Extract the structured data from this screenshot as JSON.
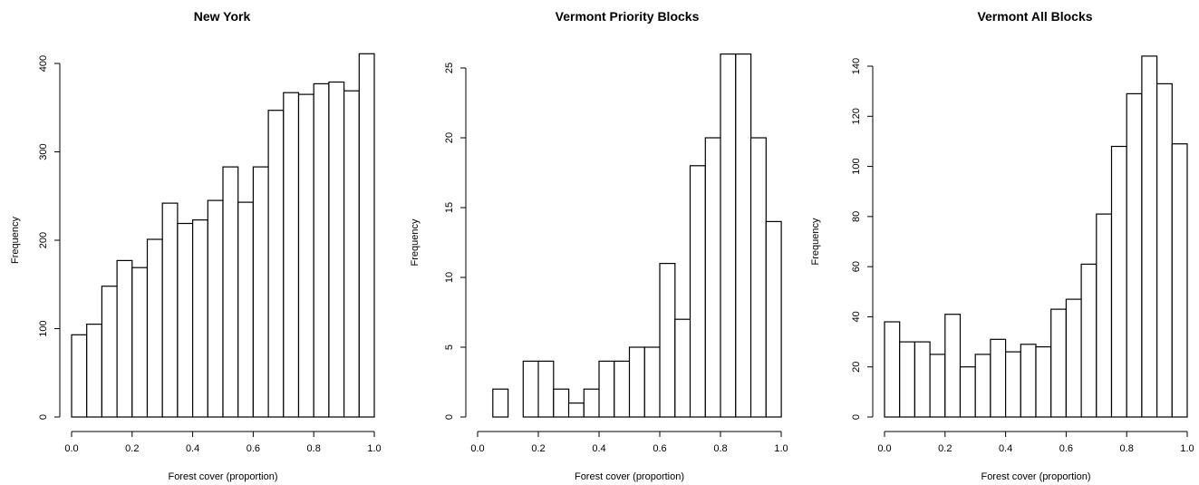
{
  "chart_data": [
    {
      "type": "bar",
      "title": "New York",
      "xlabel": "Forest cover (proportion)",
      "ylabel": "Frequency",
      "xlim": [
        0,
        1
      ],
      "ylim": [
        0,
        400
      ],
      "xticks": [
        "0.0",
        "0.2",
        "0.4",
        "0.6",
        "0.8",
        "1.0"
      ],
      "yticks": [
        "0",
        "100",
        "200",
        "300",
        "400"
      ],
      "bin_edges": [
        0.0,
        0.05,
        0.1,
        0.15,
        0.2,
        0.25,
        0.3,
        0.35,
        0.4,
        0.45,
        0.5,
        0.55,
        0.6,
        0.65,
        0.7,
        0.75,
        0.8,
        0.85,
        0.9,
        0.95,
        1.0
      ],
      "values": [
        93,
        105,
        148,
        177,
        169,
        201,
        242,
        219,
        223,
        245,
        283,
        243,
        283,
        347,
        367,
        365,
        377,
        379,
        369,
        411
      ],
      "grid": false
    },
    {
      "type": "bar",
      "title": "Vermont Priority Blocks",
      "xlabel": "Forest cover (proportion)",
      "ylabel": "Frequency",
      "xlim": [
        0,
        1
      ],
      "ylim": [
        0,
        25
      ],
      "xticks": [
        "0.0",
        "0.2",
        "0.4",
        "0.6",
        "0.8",
        "1.0"
      ],
      "yticks": [
        "0",
        "5",
        "10",
        "15",
        "20",
        "25"
      ],
      "bin_edges": [
        0.05,
        0.1,
        0.15,
        0.2,
        0.25,
        0.3,
        0.35,
        0.4,
        0.45,
        0.5,
        0.55,
        0.6,
        0.65,
        0.7,
        0.75,
        0.8,
        0.85,
        0.9,
        0.95,
        1.0
      ],
      "values": [
        2,
        0,
        4,
        4,
        2,
        1,
        2,
        4,
        4,
        5,
        5,
        11,
        7,
        18,
        20,
        26,
        26,
        20,
        14
      ],
      "grid": false
    },
    {
      "type": "bar",
      "title": "Vermont All Blocks",
      "xlabel": "Forest cover (proportion)",
      "ylabel": "Frequency",
      "xlim": [
        0,
        1
      ],
      "ylim": [
        0,
        140
      ],
      "xticks": [
        "0.0",
        "0.2",
        "0.4",
        "0.6",
        "0.8",
        "1.0"
      ],
      "yticks": [
        "0",
        "20",
        "40",
        "60",
        "80",
        "100",
        "120",
        "140"
      ],
      "bin_edges": [
        0.0,
        0.05,
        0.1,
        0.15,
        0.2,
        0.25,
        0.3,
        0.35,
        0.4,
        0.45,
        0.5,
        0.55,
        0.6,
        0.65,
        0.7,
        0.75,
        0.8,
        0.85,
        0.9,
        0.95,
        1.0
      ],
      "values": [
        38,
        30,
        30,
        25,
        41,
        20,
        25,
        31,
        26,
        29,
        28,
        43,
        47,
        61,
        81,
        108,
        129,
        144,
        133,
        109
      ],
      "grid": false
    }
  ]
}
